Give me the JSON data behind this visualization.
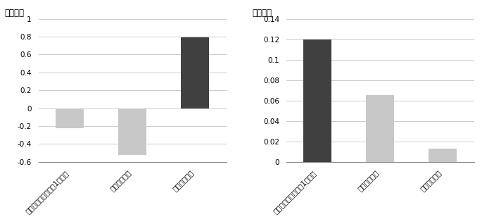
{
  "left": {
    "ylabel": "（千円）",
    "ylim": [
      -0.6,
      1.0
    ],
    "yticks": [
      -0.6,
      -0.4,
      -0.2,
      0,
      0.2,
      0.4,
      0.6,
      0.8,
      1.0
    ],
    "ytick_labels": [
      "-0.6",
      "-0.4",
      "-0.2",
      "0",
      "0.2",
      "0.4",
      "0.6",
      "0.8",
      "1"
    ],
    "categories": [
      "過去の賃金カット：1回実施",
      "２～３回実施",
      "４回以上実施"
    ],
    "values": [
      -0.22,
      -0.52,
      0.79
    ],
    "colors": [
      "#c8c8c8",
      "#c8c8c8",
      "#404040"
    ]
  },
  "right": {
    "ylabel": "（千円）",
    "ylim": [
      0,
      0.14
    ],
    "yticks": [
      0,
      0.02,
      0.04,
      0.06,
      0.08,
      0.1,
      0.12,
      0.14
    ],
    "ytick_labels": [
      "0",
      "0.02",
      "0.04",
      "0.06",
      "0.08",
      "0.1",
      "0.12",
      "0.14"
    ],
    "categories": [
      "過去の賃金カット：1回実施",
      "２～３回実施",
      "４回以上実施"
    ],
    "values": [
      0.12,
      0.065,
      0.013
    ],
    "colors": [
      "#404040",
      "#c8c8c8",
      "#c8c8c8"
    ]
  },
  "bg_color": "#ffffff",
  "grid_color": "#cccccc",
  "bar_width": 0.45,
  "tick_fontsize": 7.5,
  "label_fontsize": 7.5,
  "ylabel_fontsize": 8.5
}
